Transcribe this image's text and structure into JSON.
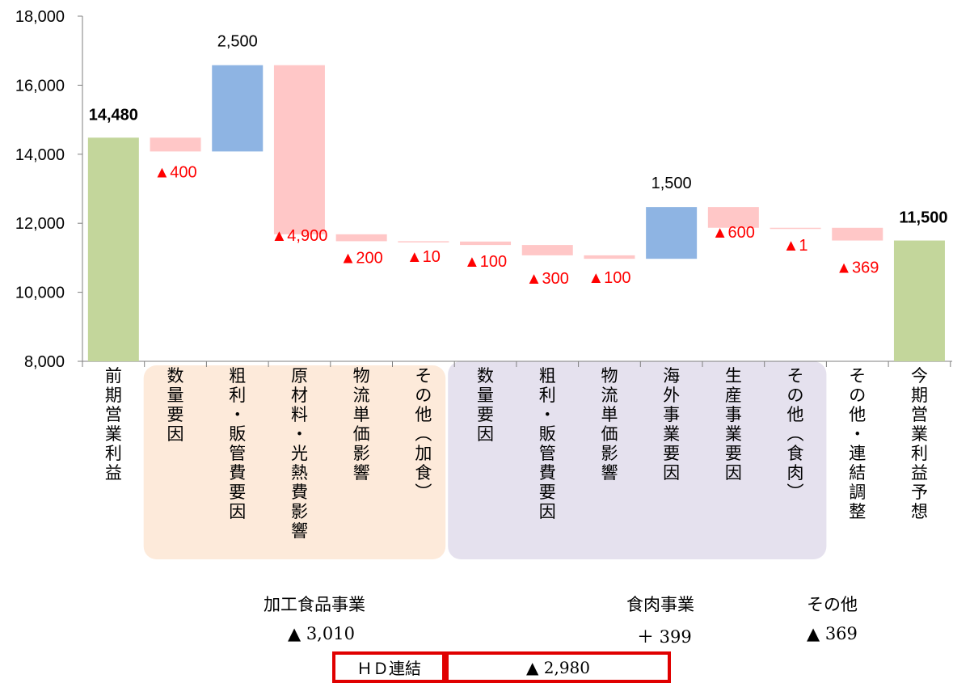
{
  "chart_data": {
    "type": "bar",
    "subtype": "waterfall",
    "ylim": [
      8000,
      18000
    ],
    "y_ticks": [
      "8,000",
      "10,000",
      "12,000",
      "14,000",
      "16,000",
      "18,000"
    ],
    "bars": [
      {
        "category": "前期営業利益",
        "base": 8000,
        "top": 14480,
        "label": "14,480",
        "kind": "total"
      },
      {
        "category": "数量要因",
        "base": 14080,
        "top": 14480,
        "label": "▲400",
        "kind": "decrease"
      },
      {
        "category": "粗利・販管費要因",
        "base": 14080,
        "top": 16580,
        "label": "2,500",
        "kind": "increase"
      },
      {
        "category": "原材料・光熱費影響",
        "base": 11680,
        "top": 16580,
        "label": "▲4,900",
        "kind": "decrease"
      },
      {
        "category": "物流単価影響",
        "base": 11480,
        "top": 11680,
        "label": "▲200",
        "kind": "decrease"
      },
      {
        "category": "その他（加食）",
        "base": 11470,
        "top": 11480,
        "label": "▲10",
        "kind": "decrease"
      },
      {
        "category": "数量要因",
        "base": 11370,
        "top": 11470,
        "label": "▲100",
        "kind": "decrease"
      },
      {
        "category": "粗利・販管費要因",
        "base": 11070,
        "top": 11370,
        "label": "▲300",
        "kind": "decrease"
      },
      {
        "category": "物流単価影響",
        "base": 10970,
        "top": 11070,
        "label": "▲100",
        "kind": "decrease"
      },
      {
        "category": "海外事業要因",
        "base": 10970,
        "top": 12470,
        "label": "1,500",
        "kind": "increase"
      },
      {
        "category": "生産事業要因",
        "base": 11870,
        "top": 12470,
        "label": "▲600",
        "kind": "decrease"
      },
      {
        "category": "その他（食肉）",
        "base": 11869,
        "top": 11870,
        "label": "▲1",
        "kind": "decrease"
      },
      {
        "category": "その他・連結調整",
        "base": 11500,
        "top": 11869,
        "label": "▲369",
        "kind": "decrease"
      },
      {
        "category": "今期営業利益予想",
        "base": 8000,
        "top": 11500,
        "label": "11,500",
        "kind": "total"
      }
    ],
    "groups": [
      {
        "name": "加工食品事業",
        "value": "▲ 3,010"
      },
      {
        "name": "食肉事業",
        "value": "＋ 399"
      },
      {
        "name": "その他",
        "value": "▲ 369"
      }
    ],
    "total_label": "ＨＤ連結",
    "total_value": "▲ 2,980"
  },
  "colors": {
    "total": "#c3d69b",
    "increase": "#8eb4e3",
    "decrease": "#ffc7c7",
    "negative_label": "#ff0000",
    "group_processed_food": "#fdeada",
    "group_meat": "#e5e1ee",
    "box_border": "#e00000"
  }
}
